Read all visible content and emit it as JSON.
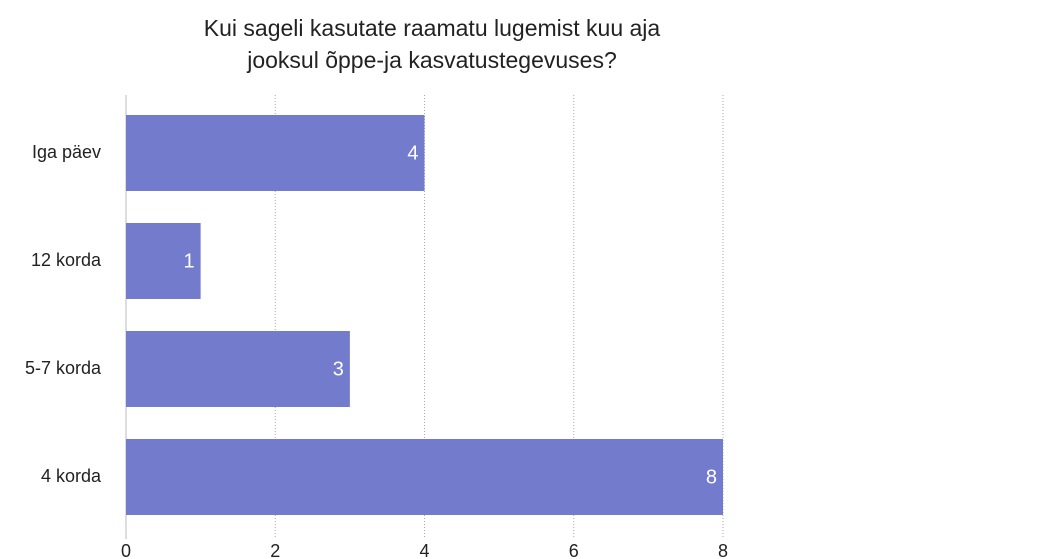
{
  "chart_data": {
    "type": "hbar",
    "title": [
      "Kui sageli kasutate raamatu lugemist kuu aja",
      "jooksul õppe-ja kasvatustegevuses?"
    ],
    "categories": [
      "Iga päev",
      "12 korda",
      "5-7 korda",
      "4 korda"
    ],
    "values": [
      4,
      1,
      3,
      8
    ],
    "color": "#737bcc",
    "xlim": [
      0,
      8
    ],
    "xticks": [
      0,
      2,
      4,
      6,
      8
    ],
    "grid": true
  }
}
